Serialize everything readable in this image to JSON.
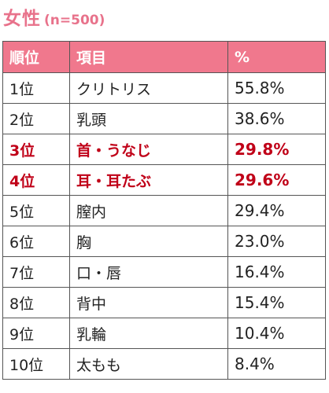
{
  "title": {
    "main": "女性",
    "sub": "(n=500)"
  },
  "headers": {
    "rank": "順位",
    "item": "項目",
    "percent": "%"
  },
  "highlight_color": "#c00018",
  "header_color": "#f0788d",
  "rows": [
    {
      "rank": "1位",
      "item": "クリトリス",
      "percent": "55.8%",
      "highlight": false
    },
    {
      "rank": "2位",
      "item": "乳頭",
      "percent": "38.6%",
      "highlight": false
    },
    {
      "rank": "3位",
      "item": "首・うなじ",
      "percent": "29.8%",
      "highlight": true
    },
    {
      "rank": "4位",
      "item": "耳・耳たぶ",
      "percent": "29.6%",
      "highlight": true
    },
    {
      "rank": "5位",
      "item": "膣内",
      "percent": "29.4%",
      "highlight": false
    },
    {
      "rank": "6位",
      "item": "胸",
      "percent": "23.0%",
      "highlight": false
    },
    {
      "rank": "7位",
      "item": "口・唇",
      "percent": "16.4%",
      "highlight": false
    },
    {
      "rank": "8位",
      "item": "背中",
      "percent": "15.4%",
      "highlight": false
    },
    {
      "rank": "9位",
      "item": "乳輪",
      "percent": "10.4%",
      "highlight": false
    },
    {
      "rank": "10位",
      "item": "太もも",
      "percent": "8.4%",
      "highlight": false
    }
  ]
}
